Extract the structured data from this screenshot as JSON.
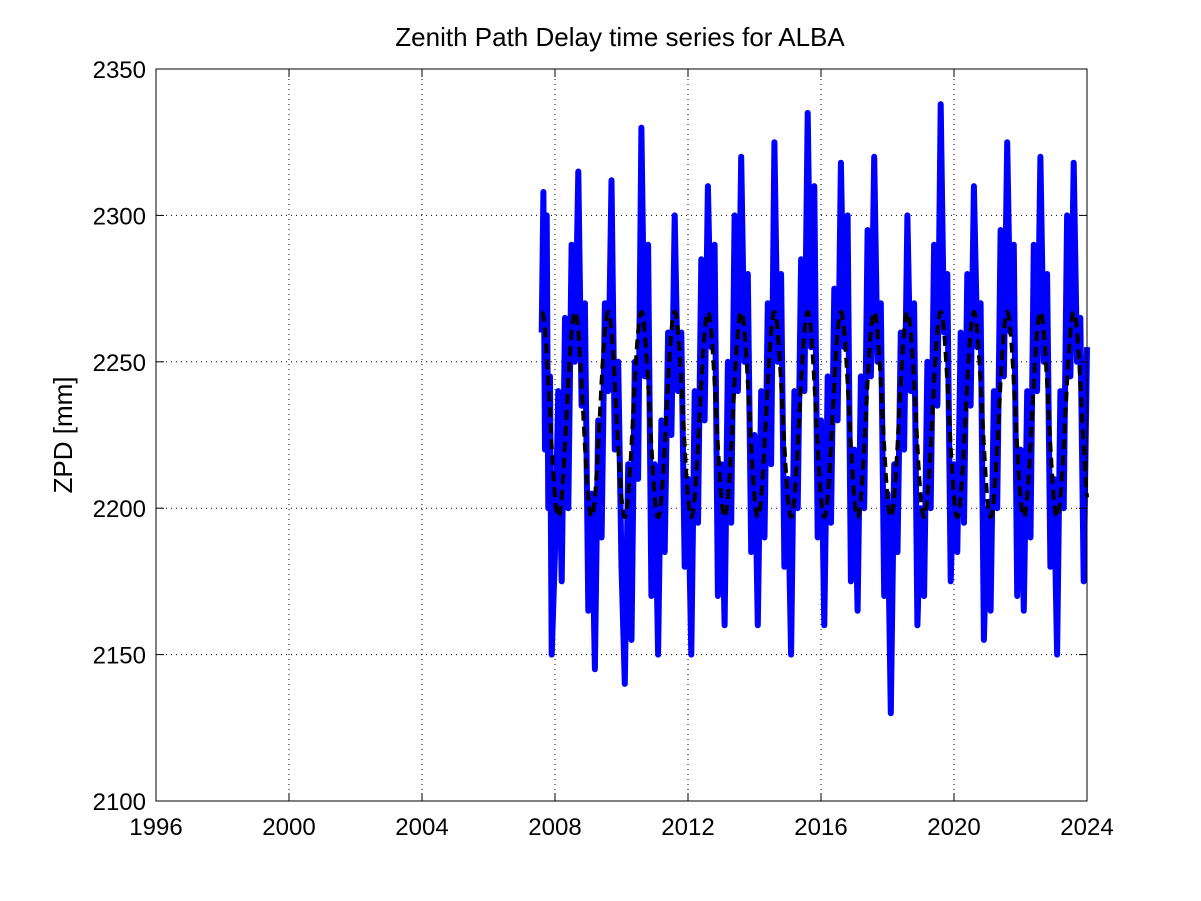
{
  "chart_data": {
    "type": "line",
    "title": "Zenith Path Delay time series for ALBA",
    "xlabel": "",
    "ylabel": "ZPD [mm]",
    "xlim": [
      1996,
      2024
    ],
    "ylim": [
      2100,
      2350
    ],
    "xticks": [
      1996,
      2000,
      2004,
      2008,
      2012,
      2016,
      2020,
      2024
    ],
    "yticks": [
      2100,
      2150,
      2200,
      2250,
      2300,
      2350
    ],
    "grid": true,
    "series": [
      {
        "style": "solid",
        "color": "#0000ff",
        "data_start": 2007.6,
        "data_end": 2024.0,
        "points": [
          [
            2007.6,
            2260
          ],
          [
            2007.65,
            2308
          ],
          [
            2007.7,
            2220
          ],
          [
            2007.75,
            2300
          ],
          [
            2007.8,
            2200
          ],
          [
            2007.85,
            2245
          ],
          [
            2007.9,
            2150
          ],
          [
            2008.0,
            2185
          ],
          [
            2008.1,
            2240
          ],
          [
            2008.2,
            2175
          ],
          [
            2008.3,
            2265
          ],
          [
            2008.4,
            2200
          ],
          [
            2008.5,
            2290
          ],
          [
            2008.6,
            2250
          ],
          [
            2008.7,
            2315
          ],
          [
            2008.8,
            2235
          ],
          [
            2008.9,
            2270
          ],
          [
            2009.0,
            2165
          ],
          [
            2009.1,
            2205
          ],
          [
            2009.2,
            2145
          ],
          [
            2009.3,
            2230
          ],
          [
            2009.4,
            2190
          ],
          [
            2009.5,
            2270
          ],
          [
            2009.6,
            2240
          ],
          [
            2009.7,
            2312
          ],
          [
            2009.8,
            2220
          ],
          [
            2009.9,
            2250
          ],
          [
            2010.0,
            2180
          ],
          [
            2010.1,
            2140
          ],
          [
            2010.2,
            2215
          ],
          [
            2010.3,
            2155
          ],
          [
            2010.4,
            2250
          ],
          [
            2010.5,
            2210
          ],
          [
            2010.6,
            2330
          ],
          [
            2010.7,
            2245
          ],
          [
            2010.8,
            2290
          ],
          [
            2010.9,
            2170
          ],
          [
            2011.0,
            2215
          ],
          [
            2011.1,
            2150
          ],
          [
            2011.2,
            2230
          ],
          [
            2011.3,
            2185
          ],
          [
            2011.4,
            2260
          ],
          [
            2011.5,
            2225
          ],
          [
            2011.6,
            2300
          ],
          [
            2011.7,
            2240
          ],
          [
            2011.8,
            2260
          ],
          [
            2011.9,
            2180
          ],
          [
            2012.0,
            2210
          ],
          [
            2012.1,
            2150
          ],
          [
            2012.2,
            2240
          ],
          [
            2012.3,
            2195
          ],
          [
            2012.4,
            2285
          ],
          [
            2012.5,
            2230
          ],
          [
            2012.6,
            2310
          ],
          [
            2012.7,
            2255
          ],
          [
            2012.8,
            2290
          ],
          [
            2012.9,
            2170
          ],
          [
            2013.0,
            2215
          ],
          [
            2013.1,
            2160
          ],
          [
            2013.2,
            2250
          ],
          [
            2013.3,
            2195
          ],
          [
            2013.4,
            2300
          ],
          [
            2013.5,
            2240
          ],
          [
            2013.6,
            2320
          ],
          [
            2013.7,
            2250
          ],
          [
            2013.8,
            2280
          ],
          [
            2013.9,
            2185
          ],
          [
            2014.0,
            2225
          ],
          [
            2014.1,
            2160
          ],
          [
            2014.2,
            2240
          ],
          [
            2014.3,
            2190
          ],
          [
            2014.4,
            2270
          ],
          [
            2014.5,
            2215
          ],
          [
            2014.6,
            2325
          ],
          [
            2014.7,
            2250
          ],
          [
            2014.8,
            2280
          ],
          [
            2014.9,
            2180
          ],
          [
            2015.0,
            2210
          ],
          [
            2015.1,
            2150
          ],
          [
            2015.2,
            2240
          ],
          [
            2015.3,
            2200
          ],
          [
            2015.4,
            2285
          ],
          [
            2015.5,
            2240
          ],
          [
            2015.6,
            2335
          ],
          [
            2015.7,
            2255
          ],
          [
            2015.8,
            2310
          ],
          [
            2015.9,
            2190
          ],
          [
            2016.0,
            2230
          ],
          [
            2016.1,
            2160
          ],
          [
            2016.2,
            2245
          ],
          [
            2016.3,
            2195
          ],
          [
            2016.4,
            2275
          ],
          [
            2016.5,
            2230
          ],
          [
            2016.6,
            2318
          ],
          [
            2016.7,
            2255
          ],
          [
            2016.8,
            2300
          ],
          [
            2016.9,
            2175
          ],
          [
            2017.0,
            2220
          ],
          [
            2017.1,
            2165
          ],
          [
            2017.2,
            2245
          ],
          [
            2017.3,
            2200
          ],
          [
            2017.4,
            2295
          ],
          [
            2017.5,
            2245
          ],
          [
            2017.6,
            2320
          ],
          [
            2017.7,
            2250
          ],
          [
            2017.8,
            2270
          ],
          [
            2017.9,
            2170
          ],
          [
            2018.0,
            2205
          ],
          [
            2018.1,
            2130
          ],
          [
            2018.2,
            2215
          ],
          [
            2018.3,
            2185
          ],
          [
            2018.4,
            2260
          ],
          [
            2018.5,
            2220
          ],
          [
            2018.6,
            2300
          ],
          [
            2018.7,
            2240
          ],
          [
            2018.8,
            2270
          ],
          [
            2018.9,
            2160
          ],
          [
            2019.0,
            2200
          ],
          [
            2019.1,
            2170
          ],
          [
            2019.2,
            2250
          ],
          [
            2019.3,
            2200
          ],
          [
            2019.4,
            2290
          ],
          [
            2019.5,
            2235
          ],
          [
            2019.6,
            2338
          ],
          [
            2019.7,
            2260
          ],
          [
            2019.8,
            2280
          ],
          [
            2019.9,
            2175
          ],
          [
            2020.0,
            2215
          ],
          [
            2020.1,
            2185
          ],
          [
            2020.2,
            2260
          ],
          [
            2020.3,
            2195
          ],
          [
            2020.4,
            2280
          ],
          [
            2020.5,
            2235
          ],
          [
            2020.6,
            2310
          ],
          [
            2020.7,
            2255
          ],
          [
            2020.8,
            2270
          ],
          [
            2020.9,
            2155
          ],
          [
            2021.0,
            2200
          ],
          [
            2021.1,
            2165
          ],
          [
            2021.2,
            2240
          ],
          [
            2021.3,
            2200
          ],
          [
            2021.4,
            2295
          ],
          [
            2021.5,
            2245
          ],
          [
            2021.6,
            2325
          ],
          [
            2021.7,
            2260
          ],
          [
            2021.8,
            2290
          ],
          [
            2021.9,
            2170
          ],
          [
            2022.0,
            2220
          ],
          [
            2022.1,
            2165
          ],
          [
            2022.2,
            2240
          ],
          [
            2022.3,
            2190
          ],
          [
            2022.4,
            2290
          ],
          [
            2022.5,
            2240
          ],
          [
            2022.6,
            2320
          ],
          [
            2022.7,
            2250
          ],
          [
            2022.8,
            2280
          ],
          [
            2022.9,
            2180
          ],
          [
            2023.0,
            2210
          ],
          [
            2023.1,
            2150
          ],
          [
            2023.2,
            2240
          ],
          [
            2023.3,
            2200
          ],
          [
            2023.4,
            2300
          ],
          [
            2023.5,
            2245
          ],
          [
            2023.6,
            2318
          ],
          [
            2023.7,
            2250
          ],
          [
            2023.8,
            2265
          ],
          [
            2023.9,
            2175
          ],
          [
            2024.0,
            2255
          ]
        ]
      },
      {
        "style": "dashed",
        "color": "#000000",
        "model": "sinusoid",
        "mean": 2232,
        "amplitude": 35,
        "period_years": 1.0,
        "peak_at_year_fraction": 0.6,
        "x_start": 2007.6,
        "x_end": 2024.0
      }
    ]
  }
}
